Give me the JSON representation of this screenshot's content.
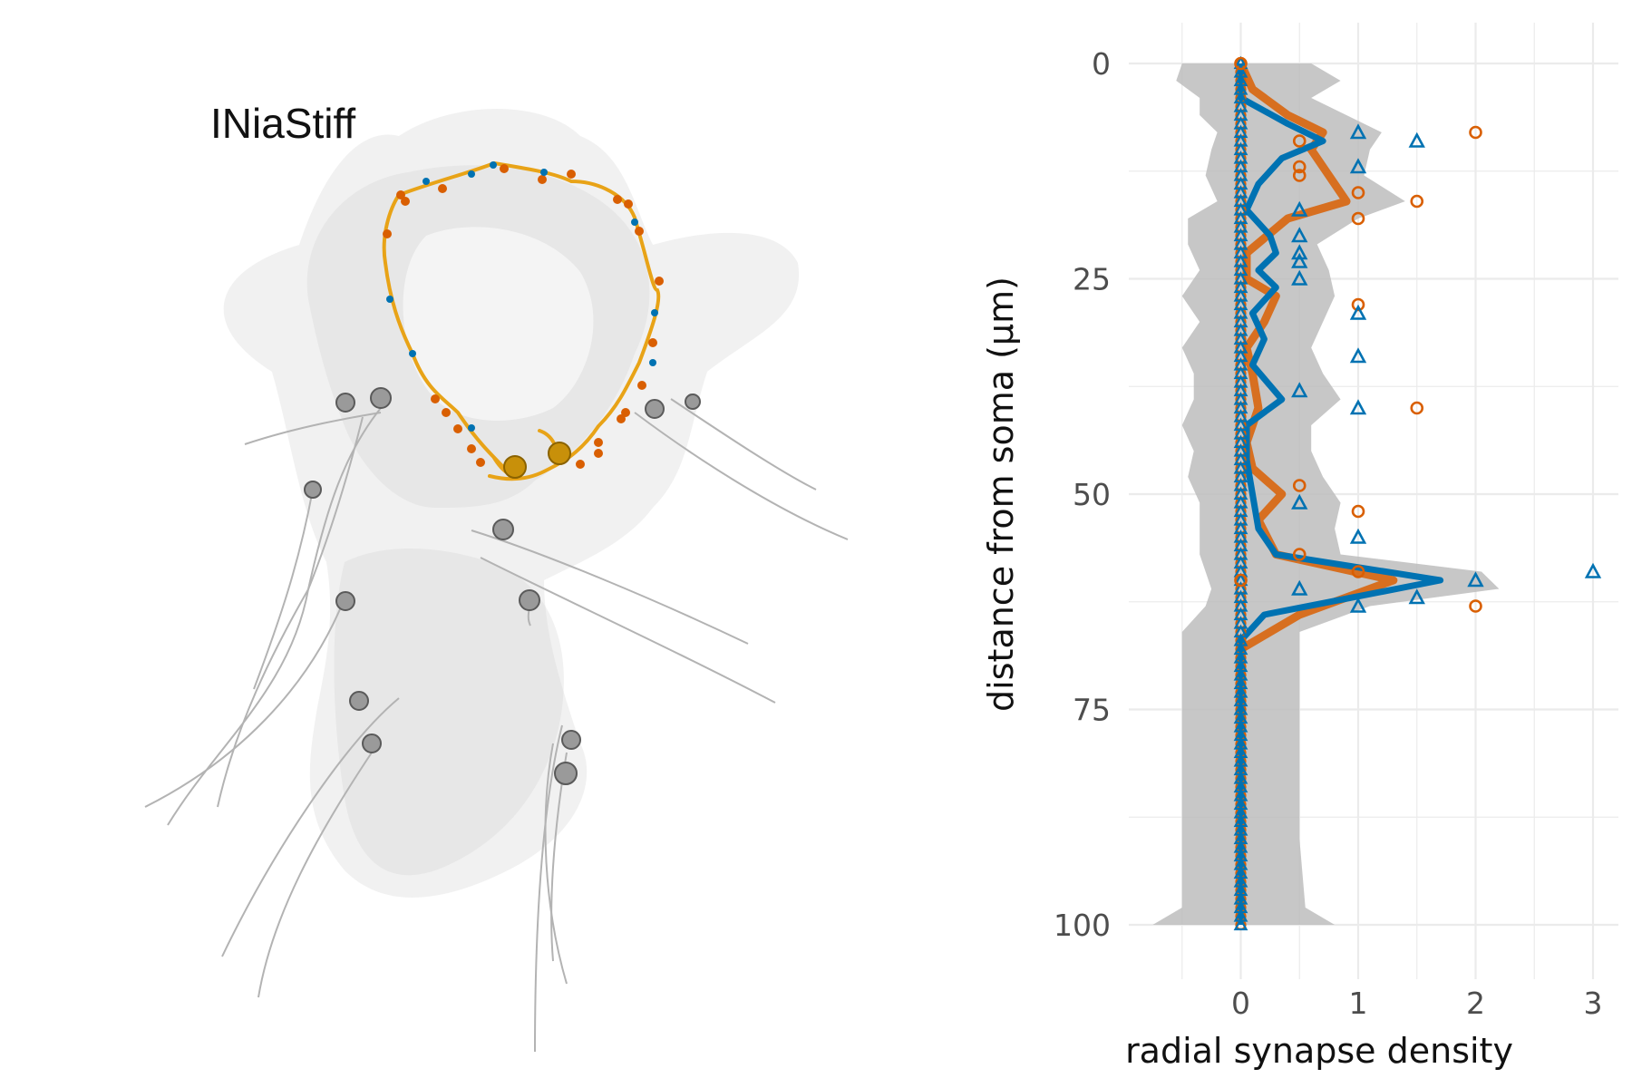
{
  "render": {
    "title": "INiaStiff",
    "colors": {
      "mesh": "#d9d9d9",
      "arbor": "#e8a317",
      "input_synapse": "#d95f02",
      "output_synapse": "#0072b2",
      "soma": "#c8900a",
      "partner": "#9a9a9a"
    }
  },
  "chart_data": {
    "type": "line",
    "orientation": "vertical",
    "xlabel": "radial synapse density",
    "ylabel": "distance from soma (µm)",
    "xlim": [
      -0.5,
      3.1
    ],
    "ylim": [
      0,
      100
    ],
    "y_reversed": true,
    "xticks": [
      "0",
      "1",
      "2",
      "3"
    ],
    "yticks": [
      "0",
      "25",
      "50",
      "75",
      "100"
    ],
    "grid": true,
    "legend": "none",
    "colors": {
      "orange": "#d95f02",
      "blue": "#0072b2",
      "ribbon": "#bdbdbd"
    },
    "series": [
      {
        "color": "#d95f02",
        "marker": "circle",
        "line": [
          [
            0,
            0
          ],
          [
            0.1,
            3
          ],
          [
            0.4,
            6
          ],
          [
            0.7,
            8
          ],
          [
            0.6,
            10
          ],
          [
            0.8,
            14
          ],
          [
            0.9,
            16
          ],
          [
            0.4,
            18
          ],
          [
            0.05,
            22
          ],
          [
            0.05,
            25
          ],
          [
            0.3,
            27
          ],
          [
            0.2,
            30
          ],
          [
            0.05,
            33
          ],
          [
            0.1,
            36
          ],
          [
            0.15,
            40
          ],
          [
            0.05,
            44
          ],
          [
            0.1,
            47
          ],
          [
            0.35,
            50
          ],
          [
            0.15,
            53
          ],
          [
            0.3,
            57
          ],
          [
            1.3,
            60
          ],
          [
            0.5,
            64
          ],
          [
            0,
            68
          ],
          [
            0,
            72
          ],
          [
            0,
            80
          ],
          [
            0,
            90
          ],
          [
            0,
            100
          ]
        ],
        "points": [
          [
            0,
            0
          ],
          [
            0.5,
            9
          ],
          [
            2,
            8
          ],
          [
            0.5,
            12
          ],
          [
            0.5,
            13
          ],
          [
            1,
            15
          ],
          [
            1.5,
            16
          ],
          [
            1,
            18
          ],
          [
            1,
            28
          ],
          [
            1.5,
            40
          ],
          [
            0.5,
            49
          ],
          [
            1,
            52
          ],
          [
            0.5,
            57
          ],
          [
            1,
            59
          ],
          [
            0,
            60
          ],
          [
            2,
            63
          ]
        ]
      },
      {
        "color": "#0072b2",
        "marker": "triangle",
        "line": [
          [
            0,
            0
          ],
          [
            0,
            4
          ],
          [
            0.4,
            7
          ],
          [
            0.7,
            9
          ],
          [
            0.35,
            11
          ],
          [
            0.15,
            14
          ],
          [
            0.05,
            17
          ],
          [
            0.25,
            20
          ],
          [
            0.3,
            22
          ],
          [
            0.15,
            24
          ],
          [
            0.3,
            26
          ],
          [
            0.1,
            29
          ],
          [
            0.2,
            32
          ],
          [
            0.1,
            35
          ],
          [
            0.35,
            39
          ],
          [
            0.05,
            42
          ],
          [
            0.05,
            46
          ],
          [
            0.1,
            50
          ],
          [
            0.15,
            54
          ],
          [
            0.3,
            57
          ],
          [
            1.7,
            60
          ],
          [
            0.2,
            64
          ],
          [
            0,
            67
          ],
          [
            0,
            72
          ],
          [
            0,
            80
          ],
          [
            0,
            90
          ],
          [
            0,
            100
          ]
        ],
        "points": [
          [
            1,
            8
          ],
          [
            1.5,
            9
          ],
          [
            1,
            12
          ],
          [
            0.5,
            17
          ],
          [
            0.5,
            20
          ],
          [
            0.5,
            22
          ],
          [
            0.5,
            23
          ],
          [
            0.5,
            25
          ],
          [
            1,
            29
          ],
          [
            1,
            34
          ],
          [
            0.5,
            38
          ],
          [
            1,
            40
          ],
          [
            0.5,
            51
          ],
          [
            1,
            55
          ],
          [
            2,
            60
          ],
          [
            3,
            59
          ],
          [
            0.5,
            61
          ],
          [
            1.5,
            62
          ],
          [
            1,
            63
          ]
        ]
      }
    ],
    "ribbon": {
      "color": "#bdbdbd",
      "bands": [
        [
          0,
          -0.5,
          0.6
        ],
        [
          2,
          -0.55,
          0.85
        ],
        [
          4,
          -0.35,
          0.6
        ],
        [
          6,
          -0.35,
          0.9
        ],
        [
          8,
          -0.2,
          1.2
        ],
        [
          10,
          -0.25,
          1.1
        ],
        [
          13,
          -0.3,
          1.05
        ],
        [
          16,
          -0.2,
          1.4
        ],
        [
          18,
          -0.45,
          1.0
        ],
        [
          21,
          -0.45,
          0.65
        ],
        [
          24,
          -0.35,
          0.75
        ],
        [
          27,
          -0.5,
          0.8
        ],
        [
          30,
          -0.35,
          0.7
        ],
        [
          33,
          -0.5,
          0.6
        ],
        [
          36,
          -0.4,
          0.7
        ],
        [
          39,
          -0.4,
          0.85
        ],
        [
          42,
          -0.5,
          0.6
        ],
        [
          45,
          -0.4,
          0.6
        ],
        [
          48,
          -0.45,
          0.7
        ],
        [
          51,
          -0.35,
          0.85
        ],
        [
          54,
          -0.35,
          0.8
        ],
        [
          57,
          -0.35,
          0.85
        ],
        [
          59,
          -0.3,
          2.05
        ],
        [
          61,
          -0.25,
          2.2
        ],
        [
          63,
          -0.3,
          1.1
        ],
        [
          66,
          -0.5,
          0.5
        ],
        [
          70,
          -0.5,
          0.5
        ],
        [
          80,
          -0.5,
          0.5
        ],
        [
          90,
          -0.5,
          0.5
        ],
        [
          98,
          -0.5,
          0.55
        ],
        [
          100,
          -0.75,
          0.8
        ]
      ]
    }
  }
}
